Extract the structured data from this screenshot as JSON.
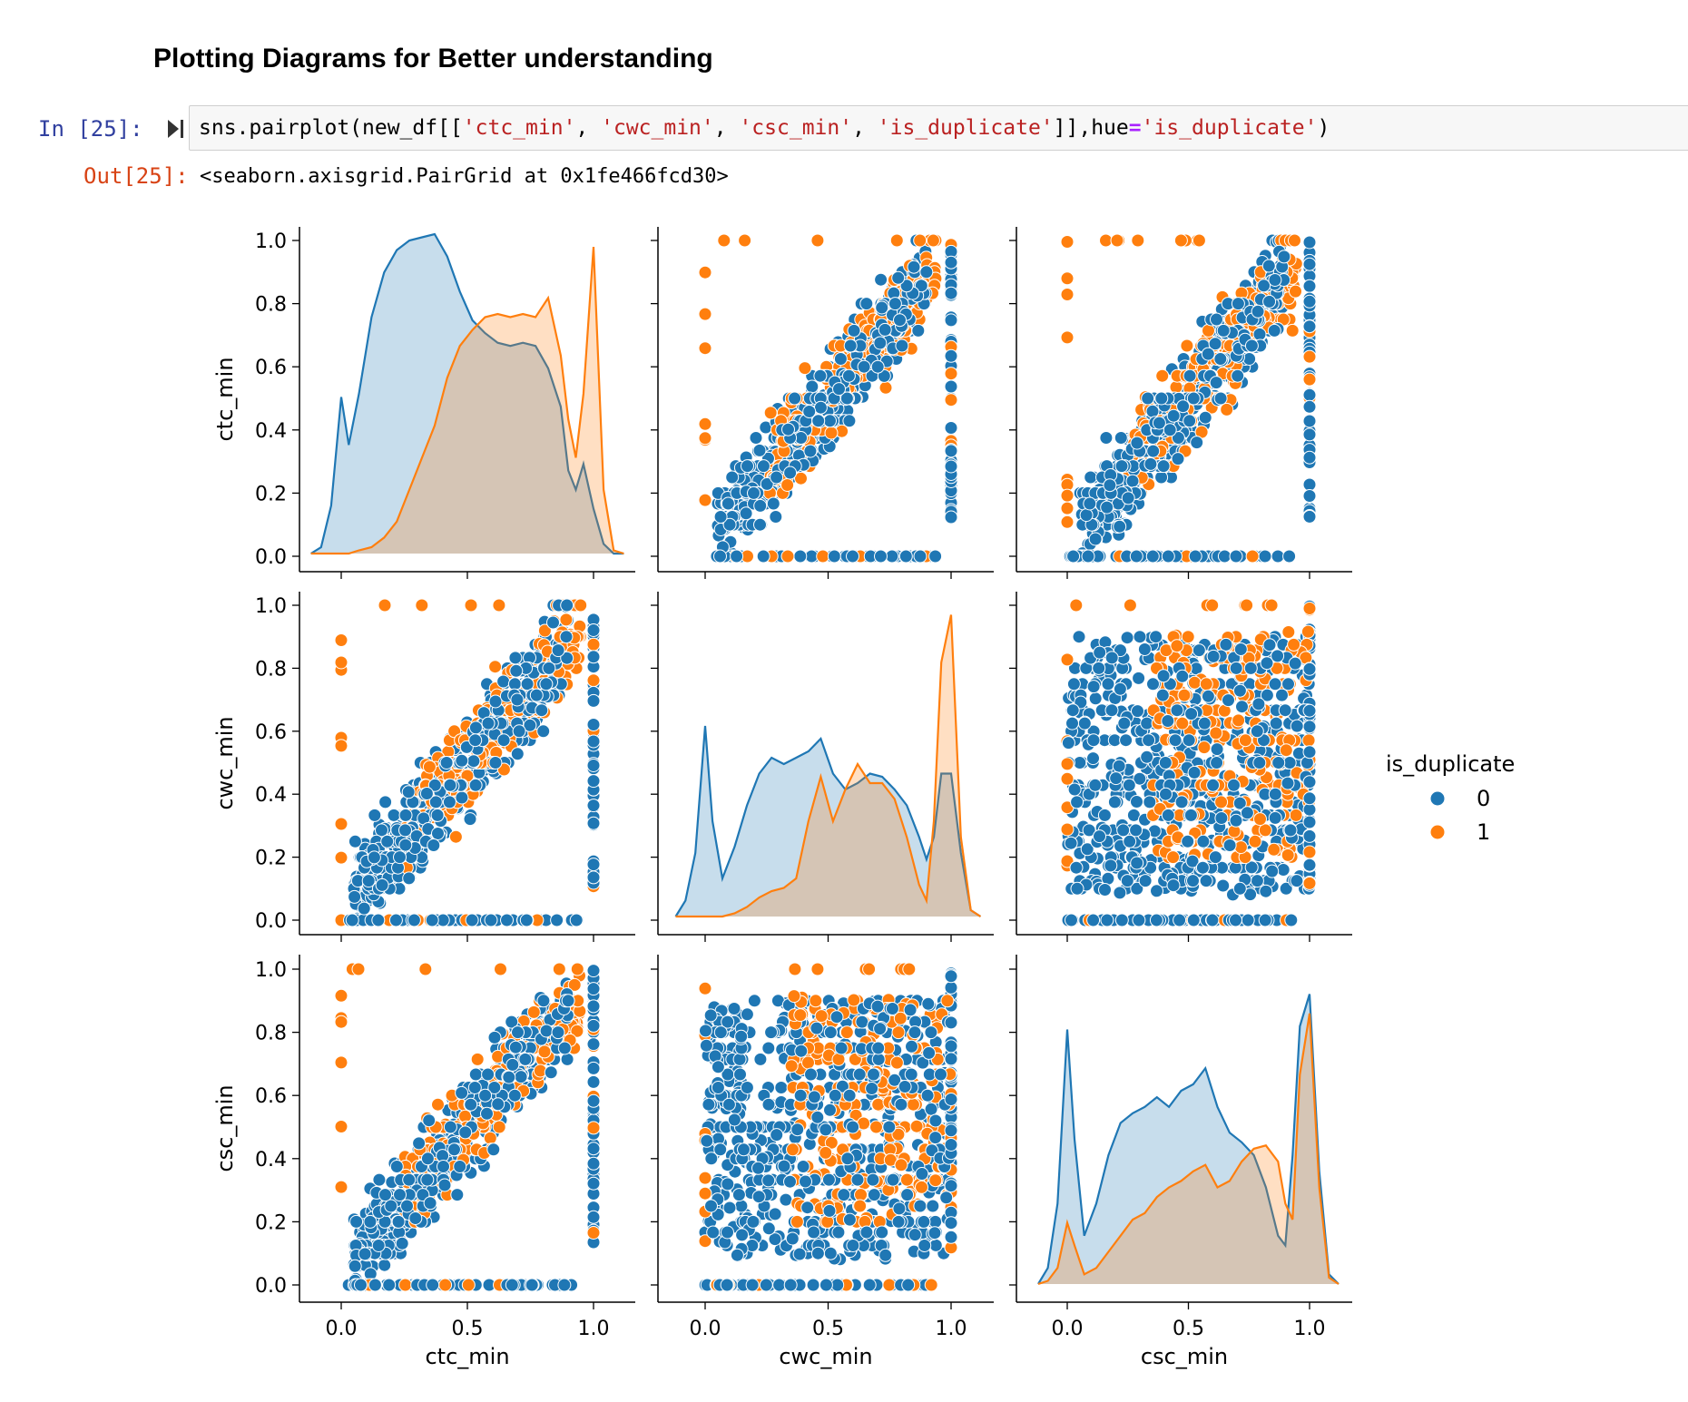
{
  "markdown": {
    "heading": "Plotting Diagrams for Better understanding"
  },
  "cell": {
    "in_prompt": "In [25]:",
    "code": {
      "t1": "sns.pairplot(new_df[[",
      "s1": "'ctc_min'",
      "c1": ", ",
      "s2": "'cwc_min'",
      "c2": ", ",
      "s3": "'csc_min'",
      "c3": ", ",
      "s4": "'is_duplicate'",
      "t2": "]],hue",
      "op": "=",
      "s5": "'is_duplicate'",
      "t3": ")"
    },
    "out_prompt": "Out[25]:",
    "output_text": "<seaborn.axisgrid.PairGrid at 0x1fe466fcd30>"
  },
  "colors": {
    "class0": "#1f77b4",
    "class1": "#ff7f0e"
  },
  "chart_data": {
    "type": "scatter",
    "variables": [
      "ctc_min",
      "cwc_min",
      "csc_min"
    ],
    "hue": "is_duplicate",
    "legend": {
      "title": "is_duplicate",
      "labels": [
        "0",
        "1"
      ],
      "position": "right"
    },
    "axis_range": [
      0,
      1
    ],
    "y_ticks": [
      "0.0",
      "0.2",
      "0.4",
      "0.6",
      "0.8",
      "1.0"
    ],
    "x_ticks": [
      "0.0",
      "0.5",
      "1.0"
    ],
    "diagonal_kde": {
      "x": [
        -0.12,
        -0.08,
        -0.04,
        0.0,
        0.03,
        0.07,
        0.12,
        0.17,
        0.22,
        0.27,
        0.32,
        0.37,
        0.42,
        0.47,
        0.52,
        0.57,
        0.62,
        0.67,
        0.72,
        0.77,
        0.82,
        0.87,
        0.9,
        0.93,
        0.96,
        1.0,
        1.04,
        1.08,
        1.12
      ],
      "ctc_min": {
        "class0": [
          0,
          0.02,
          0.15,
          0.49,
          0.34,
          0.5,
          0.74,
          0.88,
          0.95,
          0.98,
          0.99,
          1.0,
          0.93,
          0.82,
          0.73,
          0.69,
          0.66,
          0.65,
          0.66,
          0.65,
          0.58,
          0.46,
          0.26,
          0.2,
          0.28,
          0.14,
          0.03,
          0,
          0
        ],
        "class1": [
          0,
          0,
          0,
          0,
          0,
          0.01,
          0.02,
          0.05,
          0.1,
          0.2,
          0.3,
          0.4,
          0.55,
          0.65,
          0.7,
          0.74,
          0.75,
          0.74,
          0.75,
          0.74,
          0.8,
          0.62,
          0.42,
          0.3,
          0.5,
          0.96,
          0.2,
          0.01,
          0
        ]
      },
      "cwc_min": {
        "class0": [
          0,
          0.05,
          0.2,
          0.6,
          0.3,
          0.12,
          0.22,
          0.35,
          0.45,
          0.5,
          0.48,
          0.5,
          0.52,
          0.56,
          0.45,
          0.4,
          0.42,
          0.45,
          0.44,
          0.4,
          0.35,
          0.25,
          0.18,
          0.25,
          0.45,
          0.45,
          0.2,
          0.02,
          0
        ],
        "class1": [
          0,
          0,
          0,
          0,
          0,
          0,
          0.01,
          0.03,
          0.06,
          0.08,
          0.09,
          0.12,
          0.3,
          0.44,
          0.3,
          0.4,
          0.48,
          0.42,
          0.42,
          0.37,
          0.25,
          0.1,
          0.05,
          0.3,
          0.8,
          0.95,
          0.25,
          0.02,
          0
        ]
      },
      "csc_min": {
        "class0": [
          0,
          0.05,
          0.25,
          0.79,
          0.45,
          0.15,
          0.25,
          0.4,
          0.5,
          0.53,
          0.55,
          0.58,
          0.55,
          0.6,
          0.62,
          0.67,
          0.55,
          0.47,
          0.44,
          0.4,
          0.3,
          0.15,
          0.12,
          0.4,
          0.8,
          0.9,
          0.35,
          0.03,
          0
        ],
        "class1": [
          0,
          0.01,
          0.05,
          0.19,
          0.12,
          0.03,
          0.05,
          0.1,
          0.15,
          0.2,
          0.22,
          0.27,
          0.3,
          0.32,
          0.35,
          0.37,
          0.3,
          0.32,
          0.38,
          0.42,
          0.43,
          0.38,
          0.25,
          0.2,
          0.65,
          0.84,
          0.3,
          0.02,
          0
        ]
      }
    },
    "scatter_pairs": [
      {
        "x": "cwc_min",
        "y": "ctc_min",
        "trend": "positive"
      },
      {
        "x": "csc_min",
        "y": "ctc_min",
        "trend": "positive"
      },
      {
        "x": "ctc_min",
        "y": "cwc_min",
        "trend": "positive"
      },
      {
        "x": "csc_min",
        "y": "cwc_min",
        "trend": "grid"
      },
      {
        "x": "ctc_min",
        "y": "csc_min",
        "trend": "positive"
      },
      {
        "x": "cwc_min",
        "y": "csc_min",
        "trend": "grid"
      }
    ]
  }
}
